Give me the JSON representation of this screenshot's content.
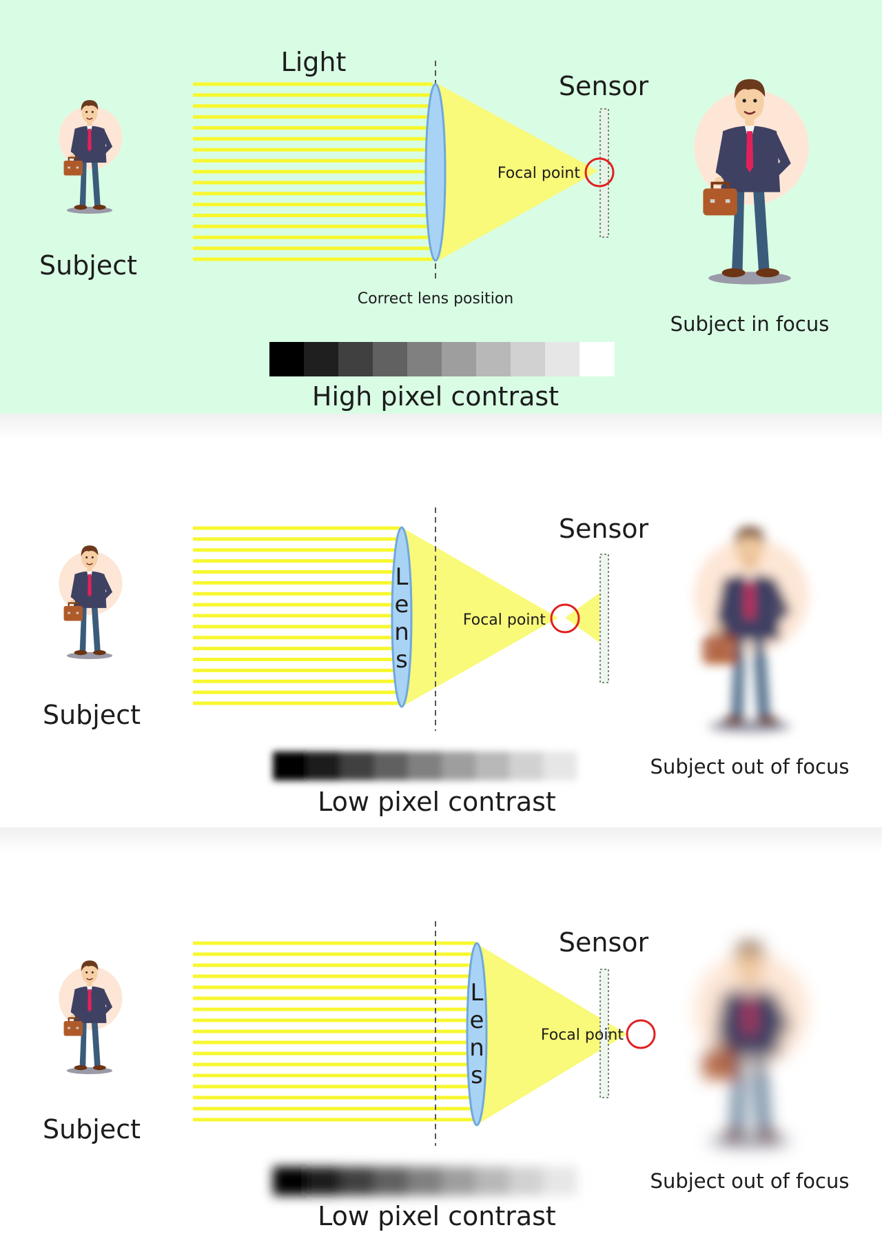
{
  "colors": {
    "top_background": "#d9fde4",
    "light_beam": "#f7f72e",
    "light_cone": "#f9f97a",
    "lens_fill": "#a9d3f5",
    "lens_stroke": "#6fa8dc",
    "focal_circle": "#e02020",
    "sensor_border": "#7a8a7a",
    "halo": "#fde6d6",
    "suit": "#3f4163",
    "tie": "#e2215a",
    "briefcase": "#b05a2a",
    "trousers": "#3b5b7a",
    "hair": "#6b3a1d",
    "skin": "#f6cfa4"
  },
  "scenes": [
    {
      "subject_label": "Subject",
      "light_label": "Light",
      "sensor_label": "Sensor",
      "focal_label": "Focal point",
      "lens_letters": [],
      "lens_caption": "Correct lens position",
      "result_label": "Subject in focus",
      "contrast_label": "High pixel contrast",
      "result_blur": 0,
      "contrast_blur": 0,
      "gradient_levels": [
        0,
        0.12,
        0.25,
        0.38,
        0.5,
        0.62,
        0.72,
        0.82,
        0.9,
        1.0
      ]
    },
    {
      "subject_label": "Subject",
      "light_label": "",
      "sensor_label": "Sensor",
      "focal_label": "Focal point",
      "lens_letters": [
        "L",
        "e",
        "n",
        "s"
      ],
      "lens_caption": "",
      "result_label": "Subject out of focus",
      "contrast_label": "Low pixel contrast",
      "result_blur": 6,
      "contrast_blur": 5,
      "gradient_levels": [
        0,
        0.12,
        0.25,
        0.38,
        0.5,
        0.62,
        0.72,
        0.82,
        0.9
      ]
    },
    {
      "subject_label": "Subject",
      "light_label": "",
      "sensor_label": "Sensor",
      "focal_label": "Focal point",
      "lens_letters": [
        "L",
        "e",
        "n",
        "s"
      ],
      "lens_caption": "",
      "result_label": "Subject out of focus",
      "contrast_label": "Low pixel contrast",
      "result_blur": 9,
      "contrast_blur": 8,
      "gradient_levels": [
        0,
        0.12,
        0.25,
        0.38,
        0.5,
        0.62,
        0.72,
        0.82,
        0.9
      ]
    }
  ]
}
